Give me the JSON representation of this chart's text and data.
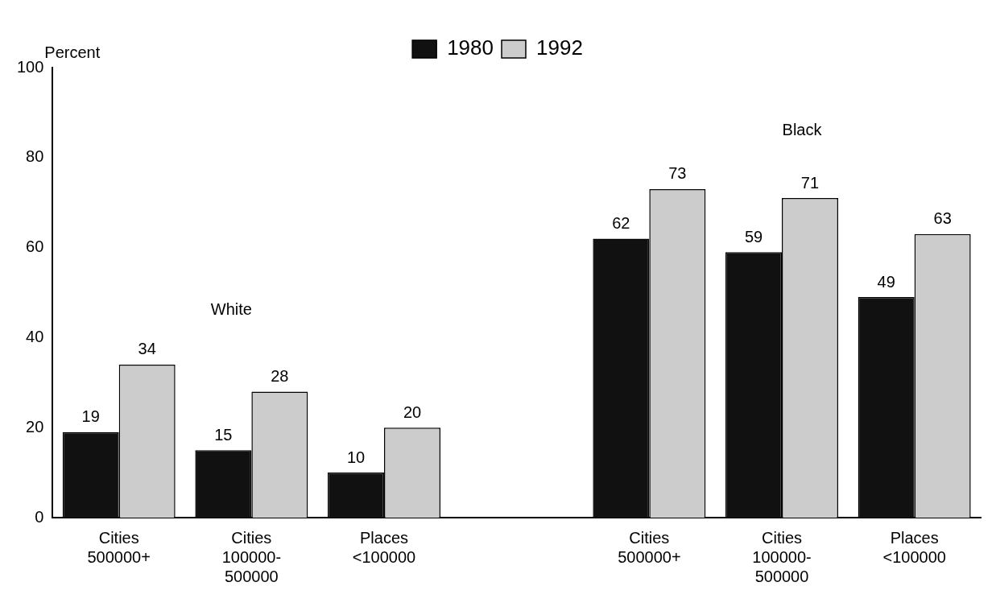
{
  "chart_data": {
    "type": "bar",
    "ylabel": "Percent",
    "categories": [
      "Cities\n500000+",
      "Cities\n100000-\n500000",
      "Places\n<100000",
      null,
      "Cities\n500000+",
      "Cities\n100000-\n500000",
      "Places\n<100000"
    ],
    "series": [
      {
        "name": "1980",
        "color": "#111111",
        "values": [
          19,
          15,
          10,
          null,
          62,
          59,
          49
        ]
      },
      {
        "name": "1992",
        "color": "#cccccc",
        "values": [
          34,
          28,
          20,
          null,
          73,
          71,
          63
        ]
      }
    ],
    "ylim": [
      0,
      100
    ],
    "yticks": [
      0,
      20,
      40,
      60,
      80,
      100
    ],
    "grid": false,
    "legend": "top",
    "data_labels": true,
    "annotations": [
      "White",
      "Black"
    ]
  }
}
